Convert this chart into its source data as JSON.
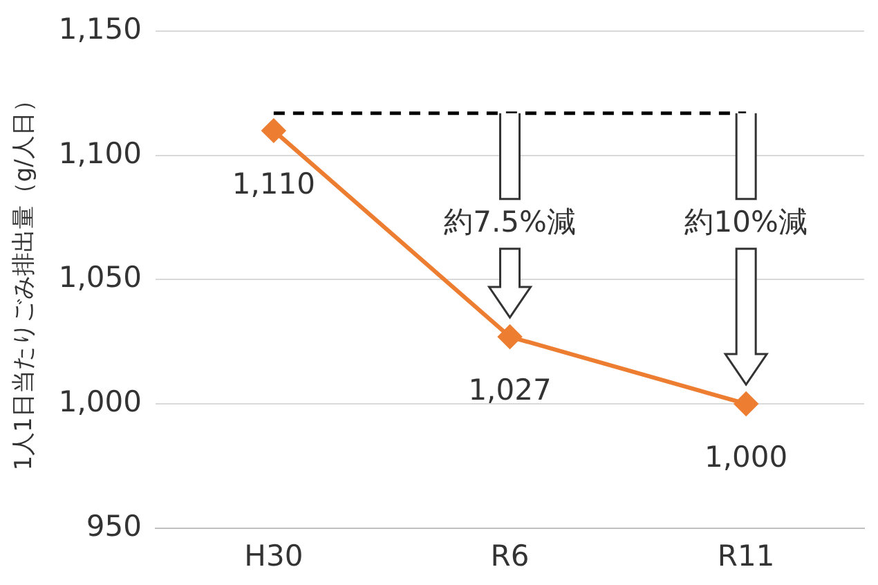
{
  "chart_data": {
    "type": "line",
    "ylabel": "1人1日当たりごみ排出量（g/人日）",
    "categories": [
      "H30",
      "R6",
      "R11"
    ],
    "series": [
      {
        "color": "#ed7d31",
        "values": [
          1110,
          1027,
          1000
        ],
        "value_labels": [
          "1,110",
          "1,027",
          "1,000"
        ]
      }
    ],
    "ylim": [
      950,
      1150
    ],
    "yticks": [
      950,
      {
        "value": 1000,
        "label": "1,000"
      },
      {
        "value": 1050,
        "label": "1,050"
      },
      {
        "value": 1100,
        "label": "1,100"
      },
      {
        "value": 1150,
        "label": "1,150"
      }
    ],
    "grid": "y",
    "legend": false,
    "marker": "diamond",
    "line_style": "solid",
    "ref_lines": [
      {
        "axis": "y",
        "value": 1117,
        "color": "#000000",
        "line_style": "dashed"
      }
    ],
    "annotations": [
      "約7.5%減",
      "約10%減"
    ]
  }
}
